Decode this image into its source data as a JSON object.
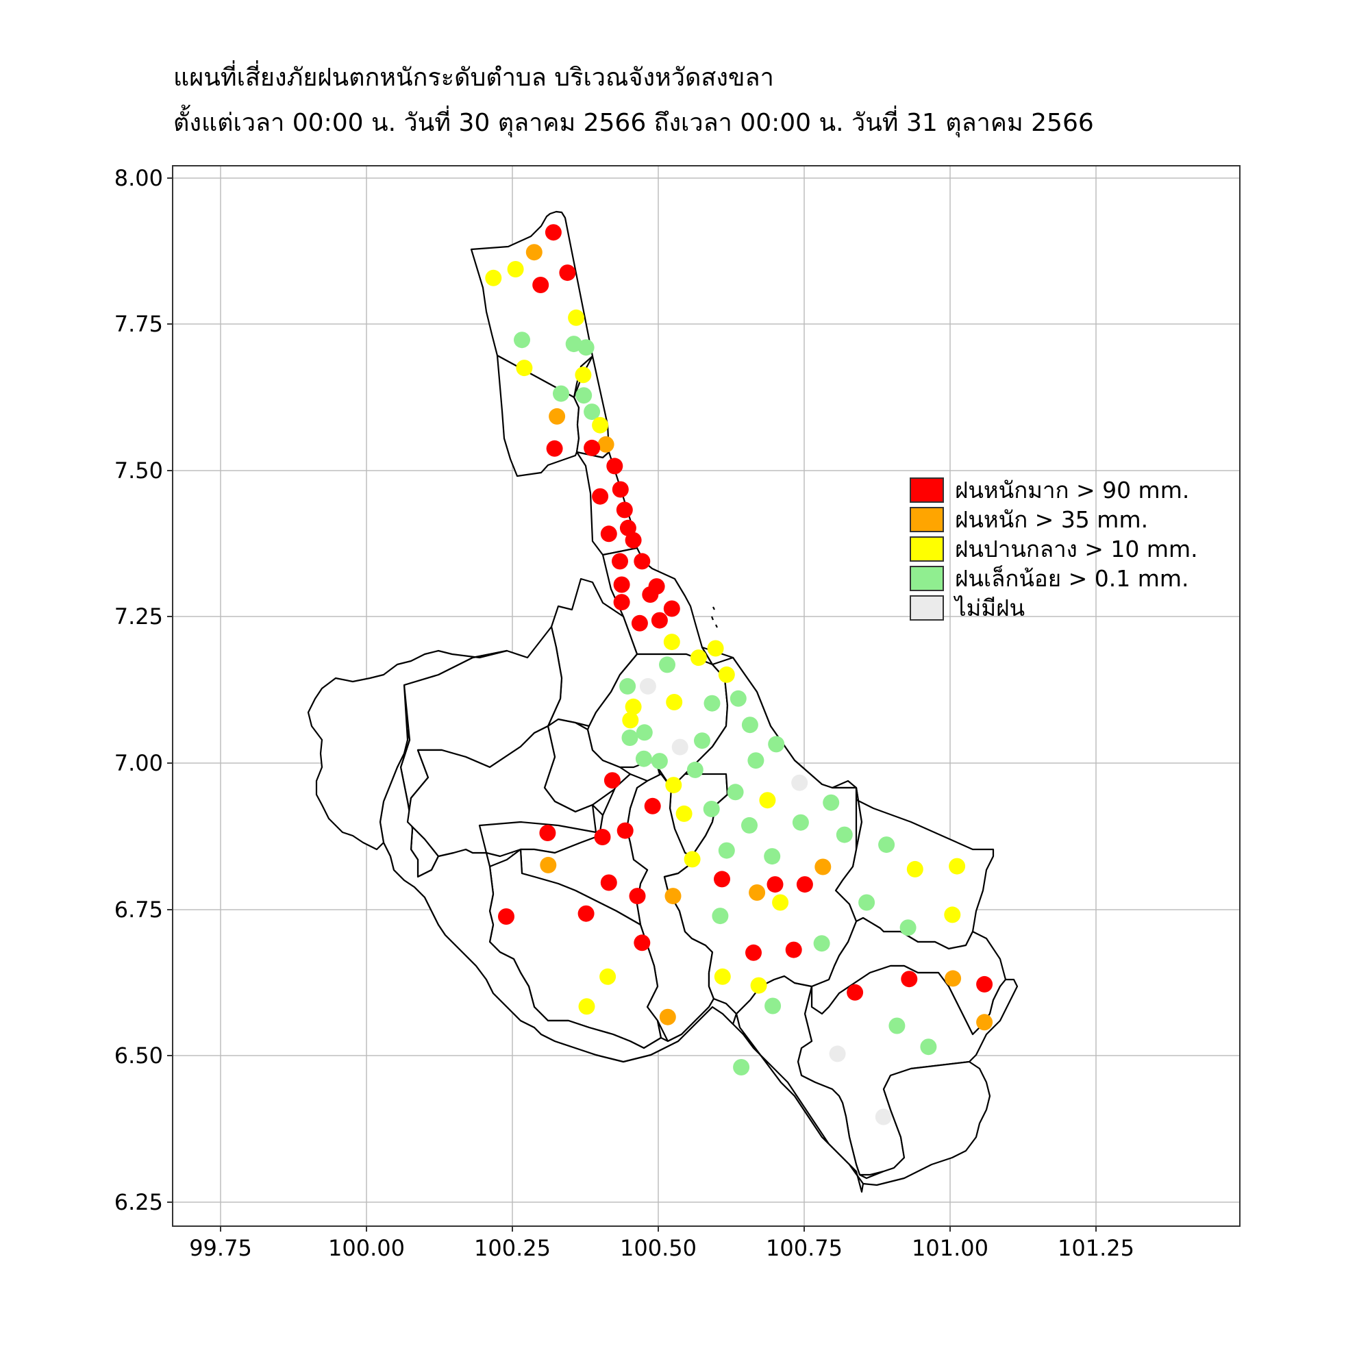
{
  "header": {
    "title_line1": "แผนที่เสี่ยงภัยฝนตกหนักระดับตำบล บริเวณจังหวัดสงขลา",
    "title_line2": "ตั้งแต่เวลา 00:00 น. วันที่ 30 ตุลาคม 2566 ถึงเวลา 00:00 น. วันที่ 31 ตุลาคม 2566"
  },
  "legend": {
    "items": [
      {
        "label": "ฝนหนักมาก > 90 mm.",
        "color": "#ff0000"
      },
      {
        "label": "ฝนหนัก > 35 mm.",
        "color": "#ffa500"
      },
      {
        "label": "ฝนปานกลาง > 10 mm.",
        "color": "#ffff00"
      },
      {
        "label": "ฝนเล็กน้อย > 0.1 mm.",
        "color": "#90ee90"
      },
      {
        "label": "ไม่มีฝน",
        "color": "#ebebeb"
      }
    ]
  },
  "chart_data": {
    "type": "scatter",
    "xlim": [
      99.665,
      101.495
    ],
    "ylim": [
      6.21,
      8.025
    ],
    "xticks": [
      "99.75",
      "100.00",
      "100.25",
      "100.50",
      "100.75",
      "101.00",
      "101.25"
    ],
    "yticks": [
      "6.25",
      "6.50",
      "6.75",
      "7.00",
      "7.25",
      "7.50",
      "7.75",
      "8.00"
    ],
    "grid": true,
    "legend_position": "right",
    "points": [
      {
        "lon": 100.318,
        "lat": 7.911,
        "c": 0
      },
      {
        "lon": 100.285,
        "lat": 7.877,
        "c": 1
      },
      {
        "lon": 100.253,
        "lat": 7.848,
        "c": 2
      },
      {
        "lon": 100.215,
        "lat": 7.833,
        "c": 2
      },
      {
        "lon": 100.296,
        "lat": 7.821,
        "c": 0
      },
      {
        "lon": 100.342,
        "lat": 7.842,
        "c": 0
      },
      {
        "lon": 100.357,
        "lat": 7.765,
        "c": 2
      },
      {
        "lon": 100.264,
        "lat": 7.727,
        "c": 3
      },
      {
        "lon": 100.353,
        "lat": 7.72,
        "c": 3
      },
      {
        "lon": 100.374,
        "lat": 7.714,
        "c": 3
      },
      {
        "lon": 100.268,
        "lat": 7.679,
        "c": 2
      },
      {
        "lon": 100.369,
        "lat": 7.667,
        "c": 2
      },
      {
        "lon": 100.331,
        "lat": 7.635,
        "c": 3
      },
      {
        "lon": 100.37,
        "lat": 7.632,
        "c": 3
      },
      {
        "lon": 100.384,
        "lat": 7.604,
        "c": 3
      },
      {
        "lon": 100.324,
        "lat": 7.596,
        "c": 1
      },
      {
        "lon": 100.398,
        "lat": 7.581,
        "c": 2
      },
      {
        "lon": 100.408,
        "lat": 7.548,
        "c": 1
      },
      {
        "lon": 100.384,
        "lat": 7.542,
        "c": 0
      },
      {
        "lon": 100.32,
        "lat": 7.541,
        "c": 0
      },
      {
        "lon": 100.423,
        "lat": 7.511,
        "c": 0
      },
      {
        "lon": 100.433,
        "lat": 7.471,
        "c": 0
      },
      {
        "lon": 100.398,
        "lat": 7.459,
        "c": 0
      },
      {
        "lon": 100.44,
        "lat": 7.436,
        "c": 0
      },
      {
        "lon": 100.446,
        "lat": 7.405,
        "c": 0
      },
      {
        "lon": 100.413,
        "lat": 7.395,
        "c": 0
      },
      {
        "lon": 100.455,
        "lat": 7.384,
        "c": 0
      },
      {
        "lon": 100.432,
        "lat": 7.348,
        "c": 0
      },
      {
        "lon": 100.47,
        "lat": 7.348,
        "c": 0
      },
      {
        "lon": 100.435,
        "lat": 7.308,
        "c": 0
      },
      {
        "lon": 100.495,
        "lat": 7.305,
        "c": 0
      },
      {
        "lon": 100.484,
        "lat": 7.291,
        "c": 0
      },
      {
        "lon": 100.435,
        "lat": 7.278,
        "c": 0
      },
      {
        "lon": 100.521,
        "lat": 7.267,
        "c": 0
      },
      {
        "lon": 100.5,
        "lat": 7.247,
        "c": 0
      },
      {
        "lon": 100.466,
        "lat": 7.242,
        "c": 0
      },
      {
        "lon": 100.521,
        "lat": 7.21,
        "c": 2
      },
      {
        "lon": 100.596,
        "lat": 7.199,
        "c": 2
      },
      {
        "lon": 100.567,
        "lat": 7.183,
        "c": 2
      },
      {
        "lon": 100.513,
        "lat": 7.171,
        "c": 3
      },
      {
        "lon": 100.615,
        "lat": 7.154,
        "c": 2
      },
      {
        "lon": 100.48,
        "lat": 7.134,
        "c": 4
      },
      {
        "lon": 100.445,
        "lat": 7.134,
        "c": 3
      },
      {
        "lon": 100.525,
        "lat": 7.107,
        "c": 2
      },
      {
        "lon": 100.59,
        "lat": 7.105,
        "c": 3
      },
      {
        "lon": 100.635,
        "lat": 7.113,
        "c": 3
      },
      {
        "lon": 100.455,
        "lat": 7.099,
        "c": 2
      },
      {
        "lon": 100.45,
        "lat": 7.076,
        "c": 2
      },
      {
        "lon": 100.655,
        "lat": 7.068,
        "c": 3
      },
      {
        "lon": 100.474,
        "lat": 7.055,
        "c": 3
      },
      {
        "lon": 100.449,
        "lat": 7.046,
        "c": 3
      },
      {
        "lon": 100.573,
        "lat": 7.041,
        "c": 3
      },
      {
        "lon": 100.7,
        "lat": 7.035,
        "c": 3
      },
      {
        "lon": 100.535,
        "lat": 7.03,
        "c": 4
      },
      {
        "lon": 100.473,
        "lat": 7.01,
        "c": 3
      },
      {
        "lon": 100.5,
        "lat": 7.006,
        "c": 3
      },
      {
        "lon": 100.665,
        "lat": 7.007,
        "c": 3
      },
      {
        "lon": 100.561,
        "lat": 6.991,
        "c": 3
      },
      {
        "lon": 100.419,
        "lat": 6.973,
        "c": 0
      },
      {
        "lon": 100.524,
        "lat": 6.965,
        "c": 2
      },
      {
        "lon": 100.74,
        "lat": 6.969,
        "c": 4
      },
      {
        "lon": 100.63,
        "lat": 6.953,
        "c": 3
      },
      {
        "lon": 100.685,
        "lat": 6.939,
        "c": 2
      },
      {
        "lon": 100.794,
        "lat": 6.935,
        "c": 3
      },
      {
        "lon": 100.488,
        "lat": 6.929,
        "c": 0
      },
      {
        "lon": 100.589,
        "lat": 6.924,
        "c": 3
      },
      {
        "lon": 100.542,
        "lat": 6.916,
        "c": 2
      },
      {
        "lon": 100.742,
        "lat": 6.901,
        "c": 3
      },
      {
        "lon": 100.654,
        "lat": 6.896,
        "c": 3
      },
      {
        "lon": 100.441,
        "lat": 6.887,
        "c": 0
      },
      {
        "lon": 100.308,
        "lat": 6.883,
        "c": 0
      },
      {
        "lon": 100.402,
        "lat": 6.876,
        "c": 0
      },
      {
        "lon": 100.817,
        "lat": 6.88,
        "c": 3
      },
      {
        "lon": 100.889,
        "lat": 6.863,
        "c": 3
      },
      {
        "lon": 100.615,
        "lat": 6.853,
        "c": 3
      },
      {
        "lon": 100.693,
        "lat": 6.843,
        "c": 3
      },
      {
        "lon": 100.556,
        "lat": 6.838,
        "c": 2
      },
      {
        "lon": 100.309,
        "lat": 6.828,
        "c": 1
      },
      {
        "lon": 100.78,
        "lat": 6.825,
        "c": 1
      },
      {
        "lon": 101.01,
        "lat": 6.826,
        "c": 2
      },
      {
        "lon": 100.938,
        "lat": 6.821,
        "c": 2
      },
      {
        "lon": 100.607,
        "lat": 6.804,
        "c": 0
      },
      {
        "lon": 100.413,
        "lat": 6.798,
        "c": 0
      },
      {
        "lon": 100.698,
        "lat": 6.795,
        "c": 0
      },
      {
        "lon": 100.749,
        "lat": 6.795,
        "c": 0
      },
      {
        "lon": 100.667,
        "lat": 6.781,
        "c": 1
      },
      {
        "lon": 100.462,
        "lat": 6.775,
        "c": 0
      },
      {
        "lon": 100.523,
        "lat": 6.775,
        "c": 1
      },
      {
        "lon": 100.855,
        "lat": 6.764,
        "c": 3
      },
      {
        "lon": 100.707,
        "lat": 6.764,
        "c": 2
      },
      {
        "lon": 100.374,
        "lat": 6.745,
        "c": 0
      },
      {
        "lon": 100.604,
        "lat": 6.741,
        "c": 3
      },
      {
        "lon": 100.237,
        "lat": 6.74,
        "c": 0
      },
      {
        "lon": 101.002,
        "lat": 6.743,
        "c": 2
      },
      {
        "lon": 100.926,
        "lat": 6.721,
        "c": 3
      },
      {
        "lon": 100.47,
        "lat": 6.695,
        "c": 0
      },
      {
        "lon": 100.778,
        "lat": 6.694,
        "c": 3
      },
      {
        "lon": 100.73,
        "lat": 6.683,
        "c": 0
      },
      {
        "lon": 100.661,
        "lat": 6.678,
        "c": 0
      },
      {
        "lon": 100.411,
        "lat": 6.637,
        "c": 2
      },
      {
        "lon": 100.608,
        "lat": 6.637,
        "c": 2
      },
      {
        "lon": 101.003,
        "lat": 6.634,
        "c": 1
      },
      {
        "lon": 100.928,
        "lat": 6.633,
        "c": 0
      },
      {
        "lon": 101.057,
        "lat": 6.624,
        "c": 0
      },
      {
        "lon": 100.67,
        "lat": 6.622,
        "c": 2
      },
      {
        "lon": 100.835,
        "lat": 6.61,
        "c": 0
      },
      {
        "lon": 100.375,
        "lat": 6.586,
        "c": 2
      },
      {
        "lon": 100.694,
        "lat": 6.587,
        "c": 3
      },
      {
        "lon": 100.514,
        "lat": 6.568,
        "c": 1
      },
      {
        "lon": 101.057,
        "lat": 6.559,
        "c": 1
      },
      {
        "lon": 100.907,
        "lat": 6.553,
        "c": 3
      },
      {
        "lon": 100.961,
        "lat": 6.517,
        "c": 3
      },
      {
        "lon": 100.805,
        "lat": 6.505,
        "c": 4
      },
      {
        "lon": 100.64,
        "lat": 6.482,
        "c": 3
      },
      {
        "lon": 100.884,
        "lat": 6.397,
        "c": 4
      }
    ]
  }
}
